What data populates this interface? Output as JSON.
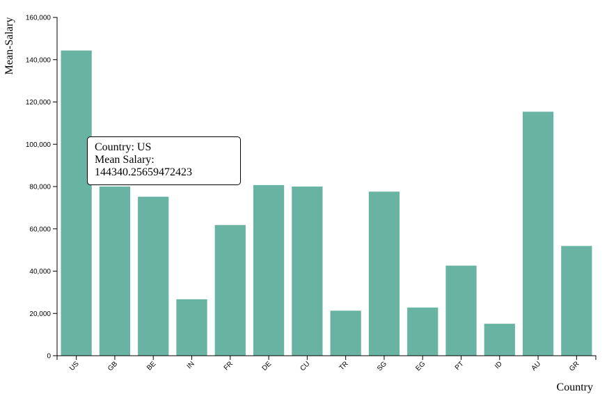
{
  "chart_data": {
    "type": "bar",
    "title": "",
    "xlabel": "Country",
    "ylabel": "Mean-Salary",
    "ylim": [
      0,
      160000
    ],
    "yticks": [
      "0",
      "20,000",
      "40,000",
      "60,000",
      "80,000",
      "100,000",
      "120,000",
      "140,000",
      "160,000"
    ],
    "ytick_values": [
      0,
      20000,
      40000,
      60000,
      80000,
      100000,
      120000,
      140000,
      160000
    ],
    "categories": [
      "US",
      "GB",
      "BE",
      "IN",
      "FR",
      "DE",
      "CU",
      "TR",
      "SG",
      "EG",
      "PT",
      "ID",
      "AU",
      "GR"
    ],
    "values": [
      144340.26,
      80000,
      75200,
      26700,
      61800,
      80700,
      80000,
      21300,
      77600,
      22800,
      42600,
      15100,
      115400,
      51900
    ],
    "bar_color": "#69b3a2",
    "grid": false
  },
  "tooltip": {
    "country": "Country: US",
    "salary_label": "Mean Salary:",
    "salary_value": "144340.25659472423"
  }
}
